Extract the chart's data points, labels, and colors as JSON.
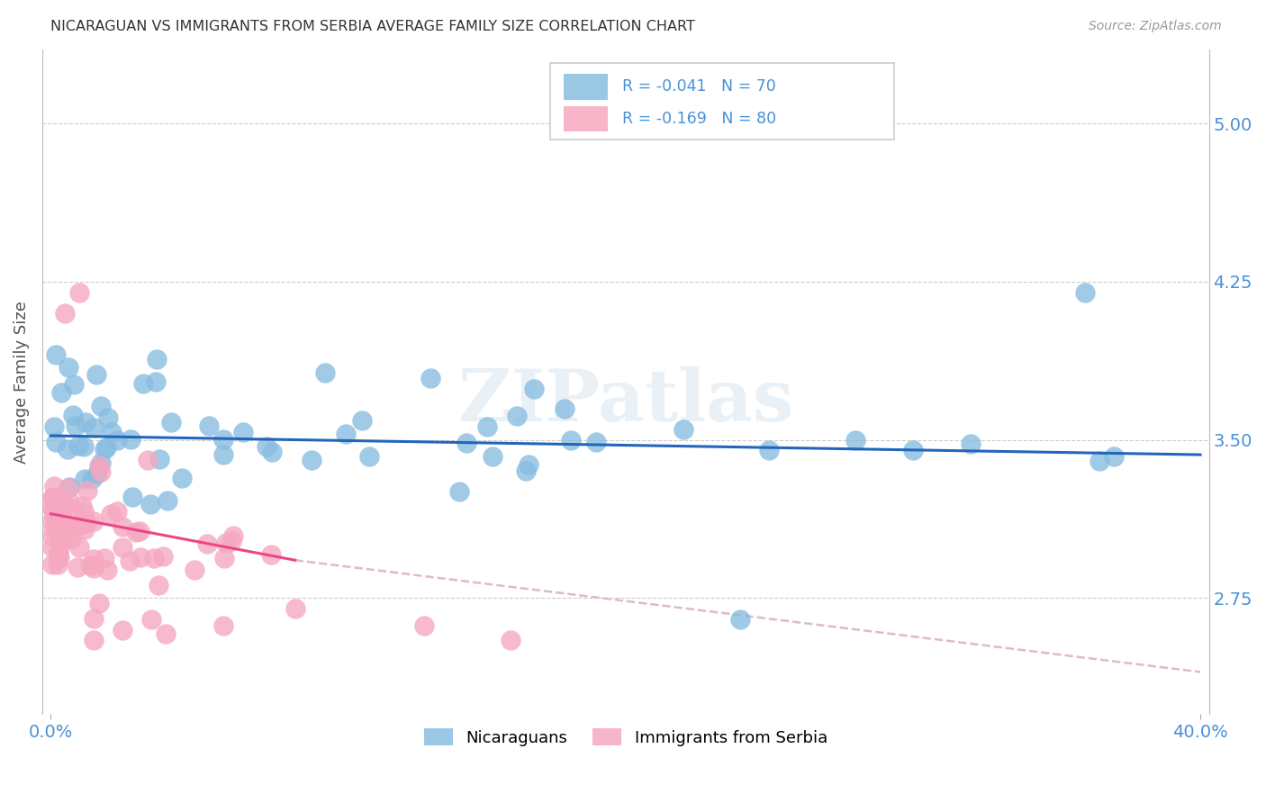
{
  "title": "NICARAGUAN VS IMMIGRANTS FROM SERBIA AVERAGE FAMILY SIZE CORRELATION CHART",
  "source": "Source: ZipAtlas.com",
  "ylabel": "Average Family Size",
  "yticks": [
    2.75,
    3.5,
    4.25,
    5.0
  ],
  "ylim": [
    2.2,
    5.35
  ],
  "xlim": [
    -0.003,
    0.403
  ],
  "legend_nicaraguans": "Nicaraguans",
  "legend_serbia": "Immigrants from Serbia",
  "r_nicaraguan": "-0.041",
  "n_nicaraguan": "70",
  "r_serbia": "-0.169",
  "n_serbia": "80",
  "blue_color": "#88bde0",
  "pink_color": "#f5a8c0",
  "blue_line_color": "#2266bb",
  "pink_line_color": "#ee4488",
  "dashed_line_color": "#ddbbc8",
  "grid_color": "#cccccc",
  "tick_label_color": "#4a90d9",
  "title_color": "#333333",
  "watermark_color": "#d8e4f0",
  "background_color": "#ffffff"
}
